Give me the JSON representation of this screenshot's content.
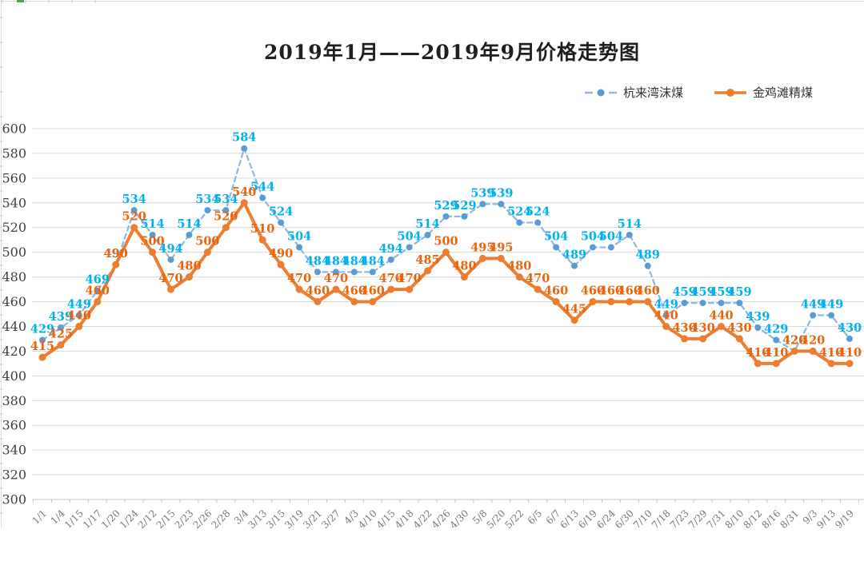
{
  "chart_data": {
    "type": "line",
    "title": "2019年1月——2019年9月价格走势图",
    "categories": [
      "1/1",
      "1/4",
      "1/15",
      "1/17",
      "1/20",
      "1/24",
      "2/12",
      "2/15",
      "2/23",
      "2/26",
      "2/28",
      "3/4",
      "3/13",
      "3/15",
      "3/19",
      "3/21",
      "3/27",
      "4/3",
      "4/10",
      "4/15",
      "4/18",
      "4/22",
      "4/26",
      "4/30",
      "5/8",
      "5/20",
      "5/22",
      "6/5",
      "6/7",
      "6/13",
      "6/19",
      "6/24",
      "6/30",
      "7/10",
      "7/18",
      "7/23",
      "7/29",
      "7/31",
      "8/10",
      "8/12",
      "8/16",
      "8/31",
      "9/3",
      "9/13",
      "9/19"
    ],
    "series": [
      {
        "name": "杭来湾沫煤",
        "values": [
          429,
          439,
          449,
          469,
          490,
          534,
          514,
          494,
          514,
          534,
          534,
          584,
          544,
          524,
          504,
          484,
          484,
          484,
          484,
          494,
          504,
          514,
          529,
          529,
          539,
          539,
          524,
          524,
          504,
          489,
          504,
          504,
          514,
          489,
          449,
          459,
          459,
          459,
          459,
          439,
          429,
          420,
          449,
          449,
          430
        ],
        "marker_color": "#5B9BD5",
        "line_color": "#8FB8E4",
        "label_color": "#00B0F0",
        "line_style": "dashed"
      },
      {
        "name": "金鸡滩精煤",
        "values": [
          415,
          425,
          440,
          460,
          490,
          520,
          500,
          470,
          480,
          500,
          520,
          540,
          510,
          490,
          470,
          460,
          470,
          460,
          460,
          470,
          470,
          485,
          500,
          480,
          495,
          495,
          480,
          470,
          460,
          445,
          460,
          460,
          460,
          460,
          440,
          430,
          430,
          440,
          430,
          410,
          410,
          420,
          420,
          410,
          410
        ],
        "marker_color": "#ED7D31",
        "line_color": "#ED7D31",
        "label_color": "#E8650D",
        "line_style": "solid"
      }
    ],
    "ylim": [
      300,
      600
    ],
    "ytick_step": 20,
    "ytick_labels": [
      "600",
      "580",
      "560",
      "540",
      "520",
      "500",
      "480",
      "460",
      "440",
      "420",
      "400",
      "380",
      "360",
      "340",
      "320",
      "300"
    ],
    "grid": true,
    "grid_color": "#D9D9D9",
    "axis_line_color": "#C6C6C6",
    "ytick_label_color": "#404040",
    "xtick_label_color": "#767676",
    "legend_position": "top-right",
    "data_labels": true
  }
}
